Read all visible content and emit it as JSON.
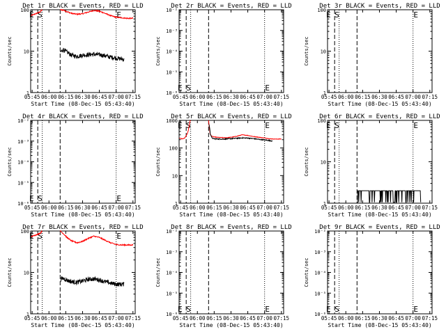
{
  "figure": {
    "ylabel": "Counts/sec",
    "xlabel": "Start Time (08-Dec-15 05:43:40)",
    "x_ticks": [
      "05:45",
      "06:00",
      "06:15",
      "06:30",
      "06:45",
      "07:00",
      "07:15"
    ],
    "x_tick_minutes": [
      345,
      360,
      375,
      390,
      405,
      420,
      435
    ],
    "xlim_minutes": [
      343.67,
      437
    ],
    "colors": {
      "events": "#000000",
      "lld": "#ff0000",
      "axes": "#000000"
    }
  },
  "chart_data": [
    {
      "type": "line",
      "title": "Det 1r BLACK = Events, RED = LLD",
      "scale": "log",
      "ylim": [
        1,
        100
      ],
      "y_ticks": [
        "1",
        "10",
        "100"
      ],
      "markers": {
        "S": 352.0,
        "E": 422.5
      },
      "dashed_minutes": [
        350,
        370
      ],
      "dotted_minutes": [
        354,
        420
      ],
      "series": [
        {
          "name": "LLD",
          "color": "#ff0000",
          "noise": 0.03,
          "t": [
            344,
            348,
            352,
            353,
            354
          ],
          "v": [
            72,
            80,
            88,
            95,
            100
          ]
        },
        {
          "name": "LLD",
          "color": "#ff0000",
          "noise": 0.03,
          "t": [
            370,
            373,
            376,
            380,
            385,
            390,
            395,
            400,
            405,
            410,
            415,
            420,
            425,
            430,
            435
          ],
          "v": [
            100,
            98,
            90,
            82,
            78,
            80,
            88,
            96,
            92,
            82,
            72,
            66,
            64,
            62,
            62
          ]
        },
        {
          "name": "Events",
          "color": "#000000",
          "noise": 0.12,
          "t": [
            370.5,
            373,
            376,
            380,
            385,
            390,
            395,
            400,
            405,
            410,
            415,
            420,
            425,
            427
          ],
          "v": [
            9.5,
            11,
            9.5,
            8,
            7.5,
            8,
            8.2,
            8.4,
            8.2,
            7.8,
            7.2,
            6.8,
            6.5,
            6.2
          ]
        }
      ]
    },
    {
      "type": "line",
      "title": "Det 2r BLACK = Events, RED = LLD",
      "scale": "log",
      "ylim": [
        1e-06,
        0.01
      ],
      "y_ticks": [
        "10⁻⁶",
        "10⁻⁵",
        "10⁻⁴",
        "10⁻³",
        "10⁻²"
      ],
      "markers": {
        "S": 352.0,
        "E": 422.5
      },
      "dashed_minutes": [
        350,
        370
      ],
      "dotted_minutes": [
        354,
        420
      ],
      "series": []
    },
    {
      "type": "line",
      "title": "Det 3r BLACK = Events, RED = LLD",
      "scale": "log",
      "ylim": [
        1,
        100
      ],
      "y_ticks": [
        "1",
        "10",
        "100"
      ],
      "markers": {
        "S": 352.0,
        "E": 422.5
      },
      "dashed_minutes": [
        350,
        370
      ],
      "dotted_minutes": [
        354,
        420
      ],
      "series": []
    },
    {
      "type": "line",
      "title": "Det 4r BLACK = Events, RED = LLD",
      "scale": "log",
      "ylim": [
        1e-06,
        0.01
      ],
      "y_ticks": [
        "10⁻⁶",
        "10⁻⁵",
        "10⁻⁴",
        "10⁻³",
        "10⁻²"
      ],
      "markers": {
        "S": 352.0,
        "E": 422.5
      },
      "dashed_minutes": [
        350,
        370
      ],
      "dotted_minutes": [
        354,
        420
      ],
      "series": []
    },
    {
      "type": "line",
      "title": "Det 5r BLACK = Events, RED = LLD",
      "scale": "log",
      "ylim": [
        1,
        1000
      ],
      "y_ticks": [
        "1",
        "10",
        "100",
        "1000"
      ],
      "markers": {
        "S": 352.0,
        "E": 422.5
      },
      "dashed_minutes": [
        350,
        370
      ],
      "dotted_minutes": [
        354,
        420
      ],
      "series": [
        {
          "name": "LLD",
          "color": "#ff0000",
          "noise": 0.02,
          "t": [
            344,
            346,
            348,
            349,
            350,
            351,
            352,
            352.8,
            353.5,
            354
          ],
          "v": [
            230,
            215,
            220,
            240,
            275,
            330,
            450,
            700,
            950,
            1000
          ]
        },
        {
          "name": "LLD",
          "color": "#ff0000",
          "noise": 0.02,
          "t": [
            370,
            370.6,
            371.3,
            372.5,
            375,
            380,
            385,
            390,
            395,
            400,
            405,
            410,
            415,
            420,
            425,
            430,
            435
          ],
          "v": [
            1000,
            560,
            330,
            270,
            250,
            240,
            235,
            245,
            265,
            300,
            285,
            260,
            245,
            230,
            215,
            210,
            212
          ]
        },
        {
          "name": "Events",
          "color": "#000000",
          "noise": 0.04,
          "t": [
            370.5,
            371.5,
            373,
            375,
            380,
            385,
            390,
            395,
            400,
            405,
            410,
            415,
            420,
            425,
            427
          ],
          "v": [
            700,
            330,
            230,
            215,
            210,
            212,
            218,
            225,
            232,
            228,
            218,
            205,
            195,
            185,
            180
          ]
        }
      ]
    },
    {
      "type": "line",
      "title": "Det 6r BLACK = Events, RED = LLD",
      "scale": "log",
      "ylim": [
        1,
        100
      ],
      "y_ticks": [
        "1",
        "10",
        "100"
      ],
      "markers": {
        "S": 352.0,
        "E": 422.5
      },
      "dashed_minutes": [
        350,
        370
      ],
      "dotted_minutes": [
        354,
        420
      ],
      "series": [
        {
          "name": "Events",
          "color": "#000000",
          "spiky": true,
          "base": 1,
          "top": 2,
          "t": [
            370.5,
            427
          ],
          "v": [
            1,
            2
          ]
        }
      ]
    },
    {
      "type": "line",
      "title": "Det 7r BLACK = Events, RED = LLD",
      "scale": "log",
      "ylim": [
        1,
        100
      ],
      "y_ticks": [
        "1",
        "10",
        "100"
      ],
      "markers": {
        "S": 352.0,
        "E": 422.5
      },
      "dashed_minutes": [
        350,
        370
      ],
      "dotted_minutes": [
        354,
        420
      ],
      "series": [
        {
          "name": "LLD",
          "color": "#ff0000",
          "noise": 0.03,
          "t": [
            344,
            348,
            352,
            353,
            354
          ],
          "v": [
            72,
            80,
            88,
            95,
            100
          ]
        },
        {
          "name": "LLD",
          "color": "#ff0000",
          "noise": 0.03,
          "t": [
            370,
            373,
            376,
            380,
            385,
            390,
            395,
            400,
            405,
            410,
            415,
            420,
            425,
            430,
            435
          ],
          "v": [
            100,
            86,
            70,
            58,
            52,
            56,
            66,
            75,
            70,
            60,
            52,
            47,
            46,
            46,
            46
          ]
        },
        {
          "name": "Events",
          "color": "#000000",
          "noise": 0.12,
          "t": [
            370.5,
            373,
            376,
            380,
            385,
            390,
            395,
            400,
            405,
            410,
            415,
            420,
            425,
            427
          ],
          "v": [
            7,
            7.2,
            6.5,
            6,
            5.8,
            6.2,
            6.8,
            7,
            6.6,
            6,
            5.5,
            5.2,
            5.2,
            5.2
          ]
        }
      ]
    },
    {
      "type": "line",
      "title": "Det 8r BLACK = Events, RED = LLD",
      "scale": "log",
      "ylim": [
        1e-06,
        0.01
      ],
      "y_ticks": [
        "10⁻⁶",
        "10⁻⁵",
        "10⁻⁴",
        "10⁻³",
        "10⁻²"
      ],
      "markers": {
        "S": 352.0,
        "E": 422.5
      },
      "dashed_minutes": [
        350,
        370
      ],
      "dotted_minutes": [
        354,
        420
      ],
      "series": []
    },
    {
      "type": "line",
      "title": "Det 9r BLACK = Events, RED = LLD",
      "scale": "log",
      "ylim": [
        1e-06,
        0.01
      ],
      "y_ticks": [
        "10⁻⁶",
        "10⁻⁵",
        "10⁻⁴",
        "10⁻³",
        "10⁻²"
      ],
      "markers": {
        "S": 352.0,
        "E": 422.5
      },
      "dashed_minutes": [
        350,
        370
      ],
      "dotted_minutes": [
        354,
        420
      ],
      "series": []
    }
  ]
}
